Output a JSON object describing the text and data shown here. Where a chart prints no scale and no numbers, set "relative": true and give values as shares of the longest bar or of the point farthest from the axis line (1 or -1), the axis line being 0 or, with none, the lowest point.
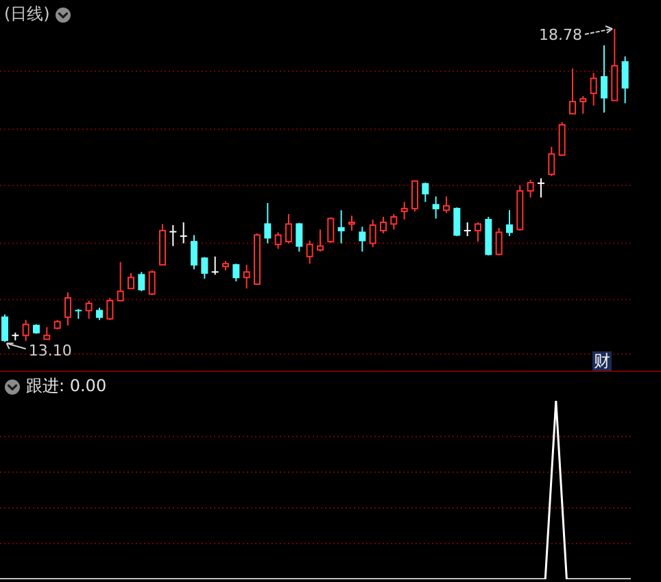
{
  "chart_data": [
    {
      "type": "candlestick",
      "title": "(日线)",
      "categories": [
        null,
        null,
        null,
        null,
        null,
        null,
        null,
        null,
        null,
        null,
        null,
        null,
        null,
        null,
        null,
        null,
        null,
        null,
        null,
        null,
        null,
        null,
        null,
        null,
        null,
        null,
        null,
        null,
        null,
        null,
        null,
        null,
        null,
        null,
        null,
        null,
        null,
        null,
        null,
        null,
        null,
        null,
        null,
        null,
        null,
        null,
        null,
        null,
        null,
        null,
        null,
        null,
        null,
        null,
        null,
        null,
        null,
        null,
        null,
        null
      ],
      "ohlc": [
        [
          13.55,
          13.6,
          13.1,
          13.13
        ],
        [
          13.22,
          13.27,
          13.13,
          13.22
        ],
        [
          13.22,
          13.5,
          13.12,
          13.42
        ],
        [
          13.4,
          13.42,
          13.25,
          13.27
        ],
        [
          13.15,
          13.37,
          13.15,
          13.22
        ],
        [
          13.35,
          13.5,
          13.33,
          13.47
        ],
        [
          13.55,
          14.0,
          13.4,
          13.9
        ],
        [
          13.67,
          13.7,
          13.52,
          13.65
        ],
        [
          13.67,
          13.85,
          13.52,
          13.8
        ],
        [
          13.67,
          13.72,
          13.5,
          13.55
        ],
        [
          13.52,
          13.9,
          13.5,
          13.85
        ],
        [
          13.85,
          14.55,
          13.85,
          14.02
        ],
        [
          14.07,
          14.35,
          14.07,
          14.27
        ],
        [
          14.32,
          14.37,
          14.02,
          14.05
        ],
        [
          13.97,
          14.4,
          13.95,
          14.37
        ],
        [
          14.5,
          15.24,
          14.5,
          15.12
        ],
        [
          15.1,
          15.22,
          14.84,
          15.1
        ],
        [
          15.02,
          15.27,
          14.89,
          15.02
        ],
        [
          14.92,
          15.04,
          14.42,
          14.5
        ],
        [
          14.62,
          14.64,
          14.25,
          14.35
        ],
        [
          14.37,
          14.65,
          14.32,
          14.37
        ],
        [
          14.47,
          14.57,
          14.4,
          14.52
        ],
        [
          14.5,
          14.52,
          14.2,
          14.27
        ],
        [
          14.27,
          14.5,
          14.07,
          14.37
        ],
        [
          14.15,
          15.07,
          14.15,
          15.04
        ],
        [
          15.24,
          15.62,
          14.89,
          14.99
        ],
        [
          14.87,
          15.09,
          14.79,
          15.04
        ],
        [
          14.92,
          15.42,
          14.89,
          15.24
        ],
        [
          15.24,
          15.26,
          14.74,
          14.84
        ],
        [
          14.65,
          14.94,
          14.52,
          14.87
        ],
        [
          14.77,
          15.14,
          14.74,
          14.84
        ],
        [
          14.92,
          15.36,
          14.9,
          15.34
        ],
        [
          15.17,
          15.49,
          14.89,
          15.12
        ],
        [
          15.24,
          15.39,
          15.12,
          15.27
        ],
        [
          15.09,
          15.19,
          14.74,
          14.94
        ],
        [
          14.89,
          15.32,
          14.82,
          15.22
        ],
        [
          15.12,
          15.37,
          15.07,
          15.27
        ],
        [
          15.24,
          15.42,
          15.14,
          15.37
        ],
        [
          15.47,
          15.64,
          15.32,
          15.52
        ],
        [
          15.52,
          16.02,
          15.47,
          16.02
        ],
        [
          15.97,
          15.99,
          15.64,
          15.79
        ],
        [
          15.59,
          15.74,
          15.34,
          15.52
        ],
        [
          15.49,
          15.74,
          15.44,
          15.57
        ],
        [
          15.52,
          15.54,
          15.02,
          15.04
        ],
        [
          15.12,
          15.27,
          15.02,
          15.12
        ],
        [
          15.12,
          15.27,
          14.92,
          15.24
        ],
        [
          15.32,
          15.37,
          14.67,
          14.69
        ],
        [
          14.69,
          15.17,
          14.67,
          15.09
        ],
        [
          15.22,
          15.49,
          15.02,
          15.09
        ],
        [
          15.14,
          15.94,
          15.12,
          15.84
        ],
        [
          15.84,
          16.04,
          15.72,
          15.99
        ],
        [
          15.98,
          16.07,
          15.72,
          15.98
        ],
        [
          16.14,
          16.64,
          16.11,
          16.51
        ],
        [
          16.49,
          17.09,
          16.49,
          17.04
        ],
        [
          17.24,
          18.06,
          17.24,
          17.46
        ],
        [
          17.46,
          17.56,
          17.24,
          17.51
        ],
        [
          17.61,
          17.98,
          17.39,
          17.88
        ],
        [
          17.91,
          18.48,
          17.26,
          17.53
        ],
        [
          17.48,
          18.78,
          17.48,
          18.11
        ],
        [
          18.18,
          18.28,
          17.43,
          17.71
        ]
      ],
      "colors": [
        "#54fcfc",
        "#ffffff",
        "#ff3232",
        "#54fcfc",
        "#ff3232",
        "#ff3232",
        "#ff3232",
        "#54fcfc",
        "#ff3232",
        "#54fcfc",
        "#ff3232",
        "#ff3232",
        "#ff3232",
        "#54fcfc",
        "#ff3232",
        "#ff3232",
        "#ffffff",
        "#ffffff",
        "#54fcfc",
        "#54fcfc",
        "#ffffff",
        "#ff3232",
        "#54fcfc",
        "#ff3232",
        "#ff3232",
        "#54fcfc",
        "#ff3232",
        "#ff3232",
        "#54fcfc",
        "#ff3232",
        "#ff3232",
        "#ff3232",
        "#54fcfc",
        "#ff3232",
        "#54fcfc",
        "#ff3232",
        "#ff3232",
        "#ff3232",
        "#ff3232",
        "#ff3232",
        "#54fcfc",
        "#54fcfc",
        "#ff3232",
        "#54fcfc",
        "#ffffff",
        "#ff3232",
        "#54fcfc",
        "#ff3232",
        "#54fcfc",
        "#ff3232",
        "#ff3232",
        "#ffffff",
        "#ff3232",
        "#ff3232",
        "#ff3232",
        "#ff3232",
        "#ff3232",
        "#54fcfc",
        "#ff3232",
        "#54fcfc"
      ],
      "annotations": [
        "18.78",
        "13.10",
        "财"
      ],
      "yticks": [
        {
          "value": 12.88,
          "label": null
        },
        {
          "value": 13.87,
          "label": null
        },
        {
          "value": 14.89,
          "label": null
        },
        {
          "value": 15.94,
          "label": null
        },
        {
          "value": 16.96,
          "label": null
        },
        {
          "value": 18.01,
          "label": null
        }
      ],
      "grid": "y",
      "tick_labels": false
    },
    {
      "type": "line",
      "title": "跟进: 0.00",
      "categories": [
        null,
        null,
        null,
        null,
        null,
        null,
        null,
        null,
        null,
        null,
        null,
        null,
        null,
        null,
        null,
        null,
        null,
        null,
        null,
        null,
        null,
        null,
        null,
        null,
        null,
        null,
        null,
        null,
        null,
        null,
        null,
        null,
        null,
        null,
        null,
        null,
        null,
        null,
        null,
        null,
        null,
        null,
        null,
        null,
        null,
        null,
        null,
        null,
        null,
        null,
        null,
        null,
        null,
        null,
        null,
        null,
        null,
        null,
        null,
        null
      ],
      "relative": true,
      "series": [
        {
          "color": "#ffffff",
          "values": [
            0,
            0,
            0,
            0,
            0,
            0,
            0,
            0,
            0,
            0,
            0,
            0,
            0,
            0,
            0,
            0,
            0,
            0,
            0,
            0,
            0,
            0,
            0,
            0,
            0,
            0,
            0,
            0,
            0,
            0,
            0,
            0,
            0,
            0,
            0,
            0,
            0,
            0,
            0,
            0,
            0,
            0,
            0,
            0,
            0,
            0,
            0,
            0,
            0,
            0,
            0,
            0,
            1,
            0,
            0,
            0,
            0,
            0,
            0,
            0
          ]
        }
      ],
      "ref_lines": [
        {
          "axis": "y",
          "value": 0.2,
          "color": "#7a0000",
          "line_style": "dotted"
        },
        {
          "axis": "y",
          "value": 0.4,
          "color": "#7a0000",
          "line_style": "dotted"
        },
        {
          "axis": "y",
          "value": 0.6,
          "color": "#7a0000",
          "line_style": "dotted"
        },
        {
          "axis": "y",
          "value": 0.8,
          "color": "#7a0000",
          "line_style": "dotted"
        }
      ],
      "tick_labels": false
    }
  ]
}
